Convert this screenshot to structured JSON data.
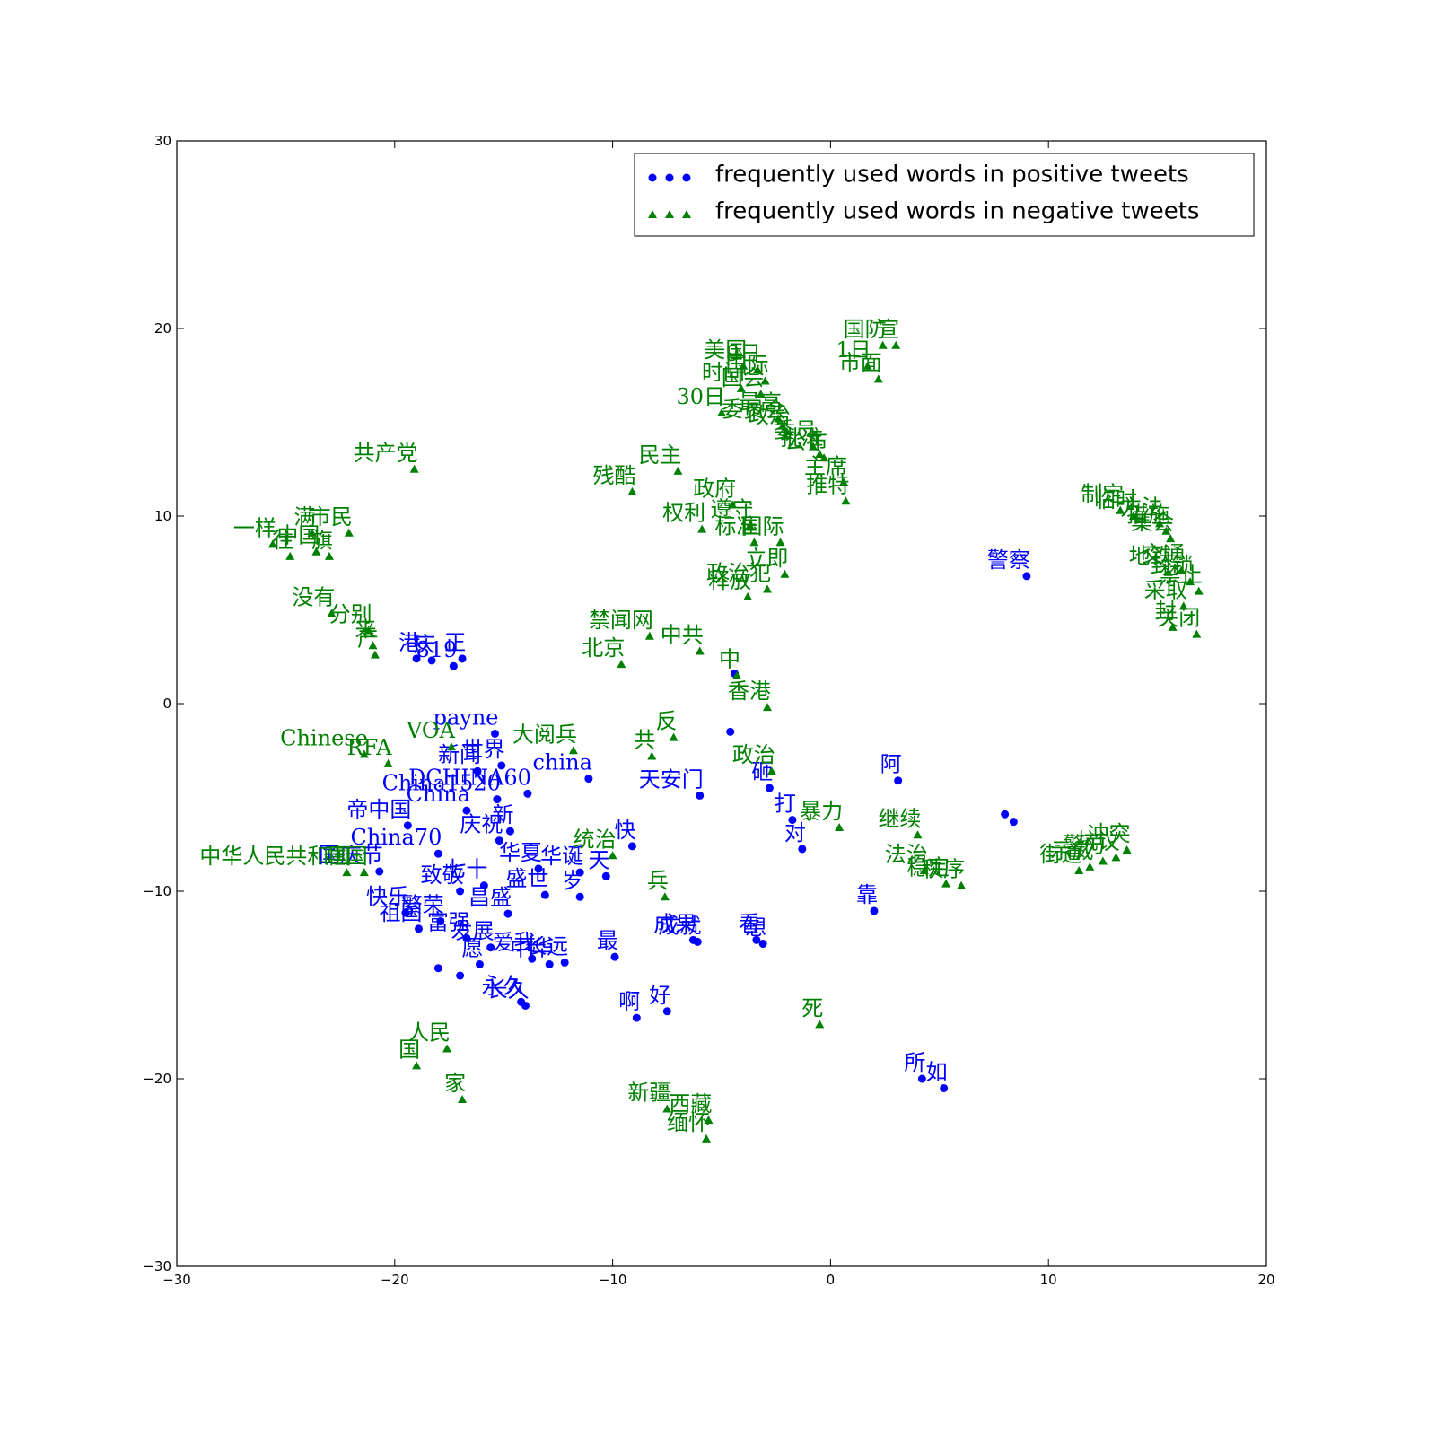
{
  "chart_data": {
    "type": "scatter",
    "xlim": [
      -30,
      20
    ],
    "ylim": [
      -30,
      30
    ],
    "xticks": [
      {
        "value": -30,
        "label": "−30"
      },
      {
        "value": -20,
        "label": "−20"
      },
      {
        "value": -10,
        "label": "−10"
      },
      0,
      10,
      20
    ],
    "yticks": [
      {
        "value": -30,
        "label": "−30"
      },
      {
        "value": -20,
        "label": "−20"
      },
      {
        "value": -10,
        "label": "−10"
      },
      0,
      10,
      20,
      30
    ],
    "legend": "upper right",
    "series": [
      {
        "name": "frequently used words in positive tweets",
        "color": "#0000ff",
        "marker": "o",
        "labels": [
          "警察",
          "港",
          "庆",
          "819",
          "正",
          "payne",
          "新闻",
          "世界",
          "DCHINA60",
          "China1520",
          "China",
          "帝中国",
          "庆祝",
          "新",
          "China70",
          "国庆节",
          "华夏",
          "华诞",
          "天",
          "七十",
          "岁",
          "致敬",
          "昌盛",
          "盛世",
          "快乐",
          "祖国",
          "繁荣",
          "富强",
          "发展",
          "爱我",
          "长远",
          "中华",
          "愿",
          "长久",
          "永久",
          null,
          null,
          "最",
          "啊",
          "好",
          "成果",
          "成就",
          "看",
          "想",
          "天安门",
          "china",
          "砸",
          "打",
          "对",
          "阿",
          "靠",
          "所",
          "如",
          null,
          null,
          "快",
          null,
          null
        ],
        "x": [
          9.0,
          -19.0,
          -18.3,
          -17.3,
          -16.9,
          -15.4,
          -16.2,
          -15.1,
          -13.9,
          -15.3,
          -16.7,
          -19.4,
          -15.2,
          -14.7,
          -18.0,
          -20.7,
          -13.4,
          -11.5,
          -10.3,
          -15.9,
          -11.5,
          -17.0,
          -14.8,
          -13.1,
          -19.5,
          -18.9,
          -17.9,
          -16.7,
          -15.6,
          -13.7,
          -12.2,
          -12.9,
          -16.1,
          -14.0,
          -14.2,
          -18.0,
          -17.0,
          -9.9,
          -8.9,
          -7.5,
          -6.3,
          -6.1,
          -3.4,
          -3.1,
          -6.0,
          -11.1,
          -2.8,
          -1.75,
          -1.3,
          3.1,
          2.0,
          4.2,
          5.2,
          8.0,
          8.4,
          -9.1,
          -4.4,
          -4.6
        ],
        "values": [
          6.8,
          2.4,
          2.3,
          2.0,
          2.4,
          -1.6,
          -3.6,
          -3.3,
          -4.8,
          -5.1,
          -5.7,
          -6.5,
          -7.3,
          -6.8,
          -8.0,
          -8.95,
          -8.8,
          -9.0,
          -9.2,
          -9.7,
          -10.3,
          -10.0,
          -11.2,
          -10.2,
          -11.15,
          -12.0,
          -11.6,
          -12.5,
          -13.0,
          -13.6,
          -13.8,
          -13.9,
          -13.9,
          -16.1,
          -15.9,
          -14.1,
          -14.5,
          -13.5,
          -16.75,
          -16.4,
          -12.6,
          -12.7,
          -12.6,
          -12.8,
          -4.9,
          -4.0,
          -4.5,
          -6.2,
          -7.75,
          -4.1,
          -11.05,
          -20.0,
          -20.5,
          -5.9,
          -6.3,
          -7.6,
          1.6,
          -1.5
        ]
      },
      {
        "name": "frequently used words in negative tweets",
        "color": "#008000",
        "marker": "^",
        "labels": [
          "共产党",
          "一样",
          "往",
          "中国",
          "旗",
          "满",
          "市民",
          "没有",
          "分别",
          "来",
          "产",
          "残酷",
          "民主",
          "30日",
          "美国",
          "时间",
          "9日",
          "国际",
          "国会",
          "最高",
          "委员会",
          "政治",
          "委员",
          "批准",
          "公布",
          "国防",
          "宣",
          "1日",
          "市面",
          "主席",
          "推特",
          "政府",
          "遵守",
          "权利",
          "标准",
          "国际",
          "立即",
          "政治犯",
          "释放",
          "禁闻网",
          "北京",
          "中共",
          "中",
          "香港",
          "反",
          "共",
          "政治",
          "暴力",
          "继续",
          "RFA",
          "Chinese",
          "VOA",
          "大阅兵",
          "统治",
          "兵",
          "死",
          "人民",
          "国",
          "家",
          "新疆",
          "西藏",
          "缅怀",
          "中华人民共和国",
          "建国",
          "制定",
          "临时",
          "方法",
          "集会",
          "措施",
          "地铁",
          "交通",
          "封锁",
          "禁止",
          "关闭",
          "采取",
          "封",
          "街道",
          "示威",
          "警方",
          "抗议",
          "冲突",
          "法治",
          "稳定",
          "秩序"
        ],
        "x": [
          -19.1,
          -25.6,
          -24.8,
          -23.6,
          -23.0,
          -23.8,
          -22.1,
          -22.9,
          -21.2,
          -21.0,
          -20.9,
          -9.1,
          -7.0,
          -5.0,
          -4.0,
          -4.1,
          -3.35,
          -3.0,
          -3.2,
          -2.4,
          -2.2,
          -2.0,
          -0.8,
          -0.5,
          -0.3,
          2.4,
          3.0,
          1.7,
          2.2,
          0.6,
          0.7,
          -4.5,
          -3.7,
          -5.9,
          -3.5,
          -2.3,
          -2.1,
          -2.9,
          -3.8,
          -8.3,
          -9.6,
          -6.0,
          -4.3,
          -2.9,
          -7.2,
          -8.2,
          -2.7,
          0.4,
          4.0,
          -20.3,
          -21.4,
          -17.4,
          -11.8,
          -10.0,
          -7.6,
          -0.5,
          -17.6,
          -19.0,
          -16.9,
          -7.5,
          -5.6,
          -5.7,
          -22.2,
          -21.4,
          13.3,
          13.9,
          15.1,
          15.6,
          15.4,
          15.5,
          16.1,
          16.5,
          16.9,
          16.8,
          16.2,
          15.7,
          11.4,
          11.9,
          12.5,
          13.1,
          13.6,
          4.3,
          5.3,
          6.0
        ],
        "values": [
          12.5,
          8.5,
          7.85,
          8.1,
          7.85,
          9.1,
          9.1,
          4.8,
          3.9,
          3.1,
          2.6,
          11.3,
          12.4,
          15.5,
          18.0,
          16.8,
          17.8,
          17.2,
          16.5,
          15.2,
          14.8,
          14.5,
          13.7,
          13.3,
          13.1,
          19.1,
          19.1,
          18.0,
          17.3,
          11.8,
          10.8,
          10.6,
          9.5,
          9.3,
          8.6,
          8.6,
          6.9,
          6.1,
          5.7,
          3.6,
          2.1,
          2.8,
          1.5,
          -0.2,
          -1.8,
          -2.8,
          -3.6,
          -6.6,
          -7.0,
          -3.2,
          -2.7,
          -2.3,
          -2.5,
          -8.1,
          -10.3,
          -17.1,
          -18.4,
          -19.3,
          -21.1,
          -21.6,
          -22.2,
          -23.2,
          -9.0,
          -9.0,
          10.3,
          10.0,
          9.6,
          8.8,
          9.2,
          7.0,
          7.1,
          6.5,
          6.0,
          3.7,
          5.2,
          4.07,
          -8.9,
          -8.7,
          -8.4,
          -8.2,
          -7.8,
          -8.9,
          -9.6,
          -9.7
        ]
      }
    ]
  }
}
